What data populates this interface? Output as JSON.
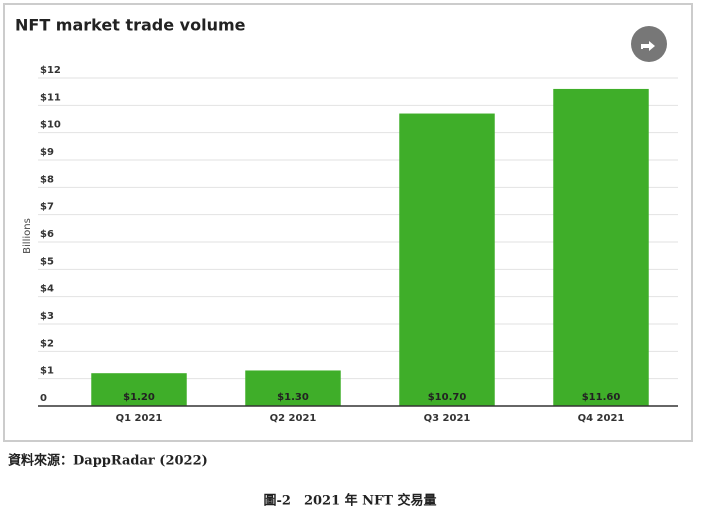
{
  "chart_data": {
    "type": "bar",
    "title": "NFT market trade volume",
    "y_label": "Billions",
    "categories": [
      "Q1 2021",
      "Q2 2021",
      "Q3 2021",
      "Q4 2021"
    ],
    "values": [
      1.2,
      1.3,
      10.7,
      11.6
    ],
    "value_labels": [
      "$1.20",
      "$1.30",
      "$10.70",
      "$11.60"
    ],
    "color": "#3fae29",
    "ylim": [
      0,
      12
    ],
    "yticks": [
      0,
      {
        "value": 1,
        "label": "$1"
      },
      {
        "value": 2,
        "label": "$2"
      },
      {
        "value": 3,
        "label": "$3"
      },
      {
        "value": 4,
        "label": "$4"
      },
      {
        "value": 5,
        "label": "$5"
      },
      {
        "value": 6,
        "label": "$6"
      },
      {
        "value": 7,
        "label": "$7"
      },
      {
        "value": 8,
        "label": "$8"
      },
      {
        "value": 9,
        "label": "$9"
      },
      {
        "value": 10,
        "label": "$10"
      },
      {
        "value": 11,
        "label": "$11"
      },
      {
        "value": 12,
        "label": "$12"
      }
    ],
    "grid": true
  },
  "source": "資料來源：DappRadar (2022)",
  "caption": "圖-2　2021 年 NFT 交易量"
}
